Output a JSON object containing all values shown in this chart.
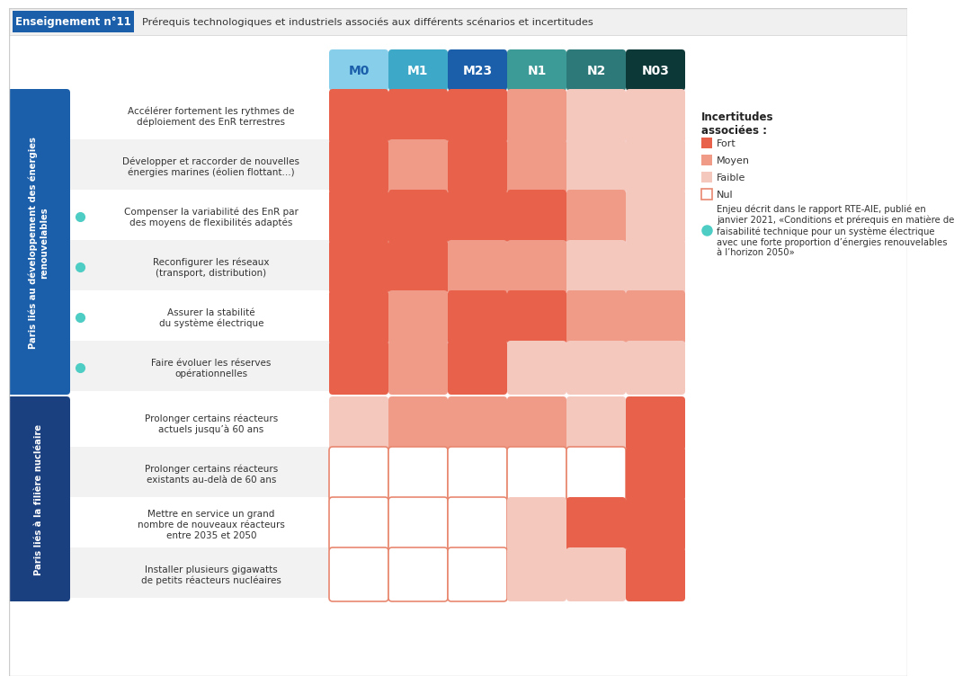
{
  "title_box": "Enseignement n°11",
  "title_main": "Prérequis technologiques et industriels associés aux différents scénarios et incertitudes",
  "col_headers": [
    "M0",
    "M1",
    "M23",
    "N1",
    "N2",
    "N03"
  ],
  "col_colors": [
    "#87CEEB",
    "#3EA8C8",
    "#1B5FAA",
    "#3D9B97",
    "#2D7878",
    "#0D3838"
  ],
  "col_text_colors": [
    "#1B5FAA",
    "#ffffff",
    "#ffffff",
    "#ffffff",
    "#ffffff",
    "#ffffff"
  ],
  "row_labels": [
    "Accélérer fortement les rythmes de\ndéploiement des EnR terrestres",
    "Développer et raccorder de nouvelles\nénergies marines (éolien flottant...)",
    "Compenser la variabilité des EnR par\ndes moyens de flexibilités adaptés",
    "Reconfigurer les réseaux\n(transport, distribution)",
    "Assurer la stabilité\ndu système électrique",
    "Faire évoluer les réserves\nopérationnelles",
    "Prolonger certains réacteurs\nactuels jusqu’à 60 ans",
    "Prolonger certains réacteurs\nexistants au-delà de 60 ans",
    "Mettre en service un grand\nnombre de nouveaux réacteurs\nentre 2035 et 2050",
    "Installer plusieurs gigawatts\nde petits réacteurs nucléaires"
  ],
  "has_dot": [
    false,
    false,
    true,
    true,
    true,
    true,
    false,
    false,
    false,
    false
  ],
  "section1_label": "Paris liés au développement des énergies\nrenouvelables",
  "section2_label": "Paris liés à la filière nucléaire",
  "section1_rows": 6,
  "section2_rows": 4,
  "color_fort": "#E8614A",
  "color_moyen": "#F09A88",
  "color_faible": "#F5C8BE",
  "color_nul_fill": "#FFFFFF",
  "color_nul_border": "#E88870",
  "dot_color": "#4ECDC4",
  "grid_data": [
    [
      "fort",
      "fort",
      "fort",
      "moyen",
      "faible",
      "faible"
    ],
    [
      "fort",
      "moyen",
      "fort",
      "moyen",
      "faible",
      "faible"
    ],
    [
      "fort",
      "fort",
      "fort",
      "fort",
      "moyen",
      "faible"
    ],
    [
      "fort",
      "fort",
      "moyen",
      "moyen",
      "faible",
      "faible"
    ],
    [
      "fort",
      "moyen",
      "fort",
      "fort",
      "moyen",
      "moyen"
    ],
    [
      "fort",
      "moyen",
      "fort",
      "faible",
      "faible",
      "faible"
    ],
    [
      "faible",
      "moyen",
      "moyen",
      "moyen",
      "faible",
      "fort"
    ],
    [
      "nul",
      "nul",
      "nul",
      "nul",
      "nul",
      "fort"
    ],
    [
      "nul",
      "nul",
      "nul",
      "faible",
      "fort",
      "fort"
    ],
    [
      "nul",
      "nul",
      "nul",
      "faible",
      "faible",
      "fort"
    ]
  ],
  "legend_title": "Incertitudes\nassociées :",
  "legend_items": [
    "Fort",
    "Moyen",
    "Faible",
    "Nul"
  ],
  "legend_note_parts": [
    "Enjeu décrit dans le rapport RTE-AIE, publié en",
    "janvier 2021, «Conditions et prérequis en matière de",
    "faisabilité technique pour un système électrique",
    "avec une forte proportion d’énergies renouvelables",
    "à l’horizon 2050»"
  ],
  "section1_color": "#1B5FAA",
  "section2_color": "#1B4080",
  "bg_color": "#ffffff",
  "row_bg_odd": "#f2f2f2",
  "row_bg_even": "#ffffff"
}
